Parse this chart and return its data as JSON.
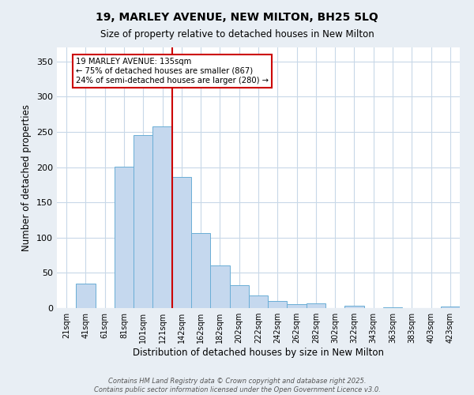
{
  "title": "19, MARLEY AVENUE, NEW MILTON, BH25 5LQ",
  "subtitle": "Size of property relative to detached houses in New Milton",
  "xlabel": "Distribution of detached houses by size in New Milton",
  "ylabel": "Number of detached properties",
  "bar_labels": [
    "21sqm",
    "41sqm",
    "61sqm",
    "81sqm",
    "101sqm",
    "121sqm",
    "142sqm",
    "162sqm",
    "182sqm",
    "202sqm",
    "222sqm",
    "242sqm",
    "262sqm",
    "282sqm",
    "302sqm",
    "322sqm",
    "343sqm",
    "363sqm",
    "383sqm",
    "403sqm",
    "423sqm"
  ],
  "bar_values": [
    0,
    35,
    0,
    201,
    246,
    258,
    186,
    106,
    60,
    32,
    18,
    10,
    6,
    7,
    0,
    3,
    0,
    1,
    0,
    0,
    2
  ],
  "bar_color": "#c5d8ee",
  "bar_edge_color": "#6aaed6",
  "vline_label_index": 6,
  "vline_color": "#cc0000",
  "ylim": [
    0,
    370
  ],
  "yticks": [
    0,
    50,
    100,
    150,
    200,
    250,
    300,
    350
  ],
  "annotation_text": "19 MARLEY AVENUE: 135sqm\n← 75% of detached houses are smaller (867)\n24% of semi-detached houses are larger (280) →",
  "annotation_box_color": "#ffffff",
  "annotation_box_edge": "#cc0000",
  "footer_line1": "Contains HM Land Registry data © Crown copyright and database right 2025.",
  "footer_line2": "Contains public sector information licensed under the Open Government Licence v3.0.",
  "background_color": "#e8eef4",
  "plot_bg_color": "#ffffff",
  "grid_color": "#c8d8e8"
}
